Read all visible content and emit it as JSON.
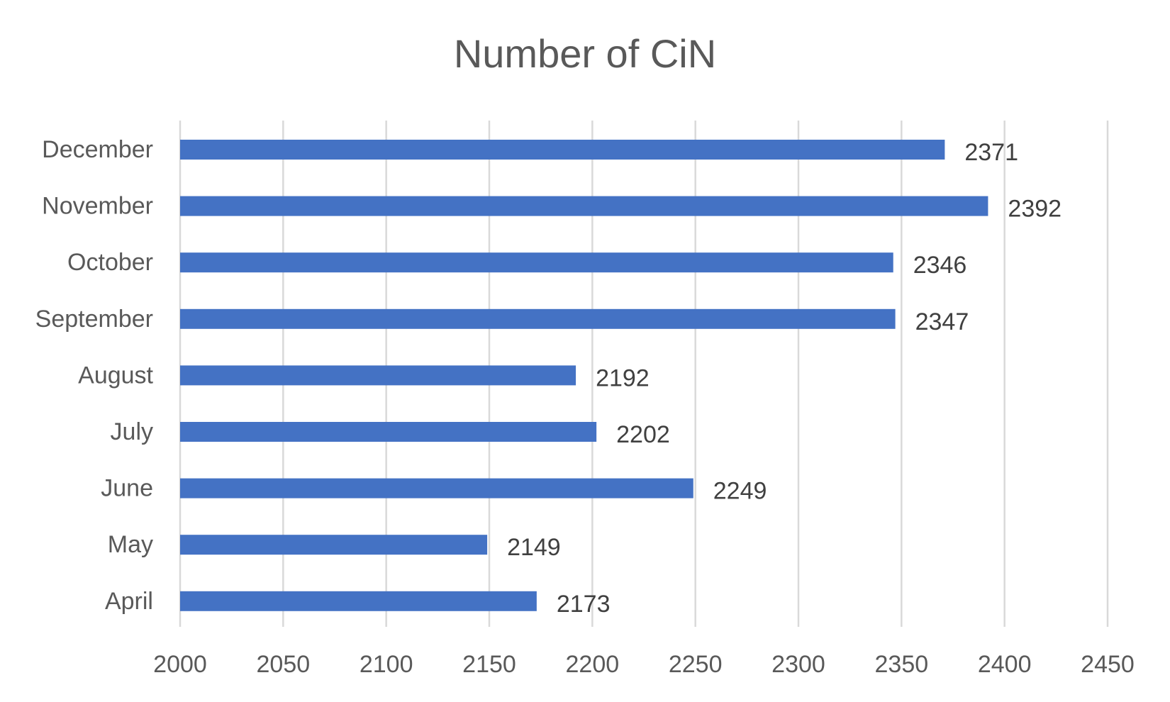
{
  "chart_data": {
    "type": "bar",
    "orientation": "horizontal",
    "title": "Number of CiN",
    "xlabel": "",
    "ylabel": "",
    "categories": [
      "December",
      "November",
      "October",
      "September",
      "August",
      "July",
      "June",
      "May",
      "April"
    ],
    "values": [
      2371,
      2392,
      2346,
      2347,
      2192,
      2202,
      2249,
      2149,
      2173
    ],
    "data_labels": [
      "2371",
      "2392",
      "2346",
      "2347",
      "2192",
      "2202",
      "2249",
      "2149",
      "2173"
    ],
    "xlim": [
      2000,
      2450
    ],
    "x_ticks": [
      2000,
      2050,
      2100,
      2150,
      2200,
      2250,
      2300,
      2350,
      2400,
      2450
    ],
    "x_tick_labels": [
      "2000",
      "2050",
      "2100",
      "2150",
      "2200",
      "2250",
      "2300",
      "2350",
      "2400",
      "2450"
    ],
    "grid": "vertical",
    "legend": "none",
    "colors": {
      "bar": "#4472C4",
      "grid": "#D9D9D9",
      "text": "#595959",
      "data_label": "#404040"
    }
  }
}
